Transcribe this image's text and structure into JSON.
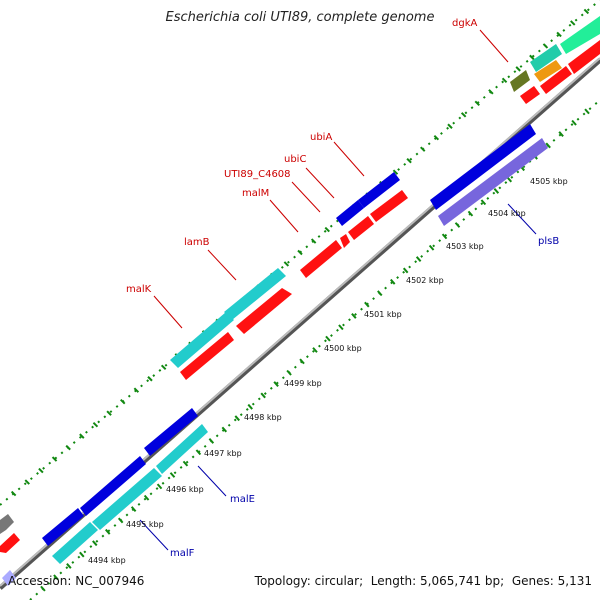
{
  "title": "Escherichia coli UTI89, complete genome",
  "footer": {
    "accession_label": "Accession:",
    "accession": "NC_007946",
    "topology_label": "Topology:",
    "topology": "circular",
    "length_label": "Length:",
    "length": "5,065,741 bp",
    "genes_label": "Genes:",
    "genes": "5,131"
  },
  "colors": {
    "forward_cds": "#0000dd",
    "forward_alt": "#7766dd",
    "cyan": "#22cccc",
    "red": "#ff1111",
    "label_red": "#cc0000",
    "label_blue": "#0000aa",
    "backbone": "#888888",
    "dots": "#118811"
  },
  "ticks": [
    {
      "label": "4494 kbp"
    },
    {
      "label": "4495 kbp"
    },
    {
      "label": "4496 kbp"
    },
    {
      "label": "4497 kbp"
    },
    {
      "label": "4498 kbp"
    },
    {
      "label": "4499 kbp"
    },
    {
      "label": "4500 kbp"
    },
    {
      "label": "4501 kbp"
    },
    {
      "label": "4502 kbp"
    },
    {
      "label": "4503 kbp"
    },
    {
      "label": "4504 kbp"
    },
    {
      "label": "4505 kbp"
    }
  ],
  "gene_labels": [
    {
      "name": "dgkA",
      "color": "red"
    },
    {
      "name": "ubiA",
      "color": "red"
    },
    {
      "name": "ubiC",
      "color": "red"
    },
    {
      "name": "UTI89_C4608",
      "color": "red"
    },
    {
      "name": "malM",
      "color": "red"
    },
    {
      "name": "lamB",
      "color": "red"
    },
    {
      "name": "malK",
      "color": "red"
    },
    {
      "name": "plsB",
      "color": "blue"
    },
    {
      "name": "malE",
      "color": "blue"
    },
    {
      "name": "malF",
      "color": "blue"
    }
  ]
}
